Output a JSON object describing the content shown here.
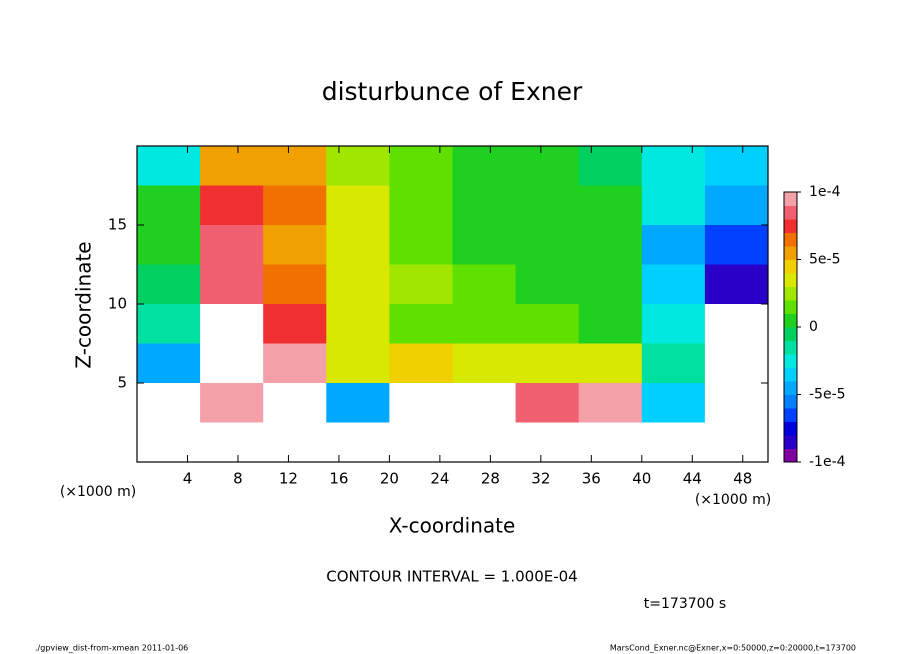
{
  "chart_data": {
    "type": "heatmap",
    "title": "disturbunce of Exner",
    "xlabel": "X-coordinate",
    "ylabel": "Z-coordinate",
    "x_unit": "(×1000 m)",
    "contour_note": "CONTOUR INTERVAL = 1.000E-04",
    "time_note": "t=173700 s",
    "footer_left": "./gpview_dist-from-xmean  2011-01-06",
    "footer_right": "MarsCond_Exner.nc@Exner,x=0:50000,z=0:20000,t=173700",
    "xlim": [
      0,
      50
    ],
    "xticks": [
      4,
      8,
      12,
      16,
      20,
      24,
      28,
      32,
      36,
      40,
      44,
      48
    ],
    "ylim": [
      0,
      20
    ],
    "yticks": [
      5,
      10,
      15
    ],
    "x": [
      2.5,
      7.5,
      12.5,
      17.5,
      22.5,
      27.5,
      32.5,
      37.5,
      42.5,
      47.5
    ],
    "z": [
      18.75,
      16.25,
      13.75,
      11.25,
      8.75,
      6.25,
      3.75,
      1.25
    ],
    "values": [
      [
        -3e-05,
        5e-05,
        5e-05,
        2e-05,
        1e-05,
        0,
        0,
        -1e-05,
        -3e-05,
        -4e-05
      ],
      [
        0,
        7e-05,
        6e-05,
        3e-05,
        1e-05,
        0,
        0,
        0,
        -3e-05,
        -5e-05
      ],
      [
        0,
        8e-05,
        5e-05,
        3e-05,
        1e-05,
        0,
        0,
        0,
        -5e-05,
        -7e-05
      ],
      [
        -1e-05,
        8e-05,
        6e-05,
        3e-05,
        2e-05,
        1e-05,
        0,
        0,
        -4e-05,
        -8e-05
      ],
      [
        -2e-05,
        0.00011,
        7e-05,
        3e-05,
        1e-05,
        1e-05,
        1e-05,
        0,
        -3e-05,
        -0.00012
      ],
      [
        -5e-05,
        0.00012,
        9e-05,
        3e-05,
        4e-05,
        3e-05,
        3e-05,
        3e-05,
        -2e-05,
        -0.00012
      ],
      [
        -0.00012,
        9e-05,
        0.00012,
        -5e-05,
        0.00012,
        0.00012,
        8e-05,
        0.0001,
        -4e-05,
        -0.00012
      ],
      [
        -0.00012,
        0.00012,
        0.00012,
        -0.00012,
        0.00012,
        0.00015,
        0.00012,
        0.00012,
        -0.00012,
        -0.00012
      ]
    ],
    "colorbar": {
      "lim": [
        -0.0001,
        0.0001
      ],
      "ticks": [
        {
          "value": 0.0001,
          "label": "1e-4"
        },
        {
          "value": 5e-05,
          "label": "5e-5"
        },
        0,
        {
          "value": -5e-05,
          "label": "-5e-5"
        },
        {
          "value": -0.0001,
          "label": "-1e-4"
        }
      ],
      "colors": [
        "#8000a0",
        "#2800c8",
        "#0000dc",
        "#0040ff",
        "#0080ff",
        "#00a8ff",
        "#00d0ff",
        "#00e8e0",
        "#00e0a0",
        "#00d060",
        "#20d020",
        "#60e000",
        "#a0e600",
        "#d8e800",
        "#f0d000",
        "#f0a000",
        "#f07000",
        "#f03030",
        "#f06070",
        "#f4a0a8"
      ],
      "out_of_range_color": "#ffffff"
    }
  }
}
